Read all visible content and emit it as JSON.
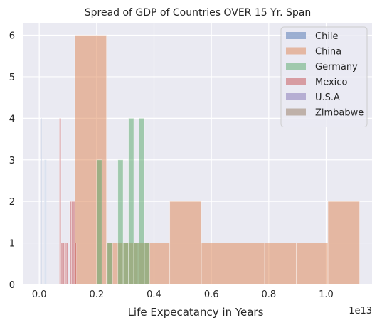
{
  "chart_data": {
    "type": "histogram",
    "title": "Spread of GDP of Countries OVER 15 Yr. Span",
    "xlabel": "Life Expecatancy in Years",
    "ylabel": "",
    "x_offset_label": "1e13",
    "xlim": [
      -0.055,
      1.16
    ],
    "ylim": [
      0,
      6.3
    ],
    "x_ticks": [
      0.0,
      0.2,
      0.4,
      0.6,
      0.8,
      1.0
    ],
    "x_tick_labels": [
      "0.0",
      "0.2",
      "0.4",
      "0.6",
      "0.8",
      "1.0"
    ],
    "y_ticks": [
      0,
      1,
      2,
      3,
      4,
      5,
      6
    ],
    "y_tick_labels": [
      "0",
      "1",
      "2",
      "3",
      "4",
      "5",
      "6"
    ],
    "grid": true,
    "legend_position": "top-right",
    "series": [
      {
        "name": "Chile",
        "color": "#4c72b0",
        "bins": [
          [
            0.007,
            0.0088,
            4
          ],
          [
            0.0088,
            0.0106,
            0
          ],
          [
            0.0106,
            0.0124,
            0
          ],
          [
            0.0124,
            0.0142,
            0
          ],
          [
            0.0142,
            0.016,
            0
          ],
          [
            0.016,
            0.0178,
            0
          ],
          [
            0.0178,
            0.0196,
            3
          ],
          [
            0.0196,
            0.0214,
            3
          ],
          [
            0.0214,
            0.0232,
            3
          ],
          [
            0.0232,
            0.025,
            3
          ]
        ]
      },
      {
        "name": "China",
        "color": "#dd8452",
        "bins": [
          [
            0.124,
            0.2343,
            6
          ],
          [
            0.2343,
            0.3446,
            1
          ],
          [
            0.3446,
            0.4549,
            1
          ],
          [
            0.4549,
            0.5652,
            2
          ],
          [
            0.5652,
            0.6755,
            1
          ],
          [
            0.6755,
            0.7858,
            1
          ],
          [
            0.7858,
            0.8961,
            1
          ],
          [
            0.8961,
            1.0064,
            1
          ],
          [
            1.0064,
            1.1167,
            2
          ]
        ]
      },
      {
        "name": "Germany",
        "color": "#55a868",
        "bins": [
          [
            0.2,
            0.2185,
            3
          ],
          [
            0.2185,
            0.237,
            0
          ],
          [
            0.237,
            0.2555,
            1
          ],
          [
            0.2555,
            0.274,
            0
          ],
          [
            0.274,
            0.2925,
            3
          ],
          [
            0.2925,
            0.311,
            1
          ],
          [
            0.311,
            0.3295,
            4
          ],
          [
            0.3295,
            0.348,
            1
          ],
          [
            0.348,
            0.3665,
            4
          ],
          [
            0.3665,
            0.385,
            1
          ]
        ]
      },
      {
        "name": "Mexico",
        "color": "#c44e52",
        "bins": [
          [
            0.07,
            0.076,
            4
          ],
          [
            0.076,
            0.082,
            1
          ],
          [
            0.082,
            0.088,
            1
          ],
          [
            0.088,
            0.094,
            1
          ],
          [
            0.094,
            0.1,
            1
          ],
          [
            0.1,
            0.106,
            0
          ],
          [
            0.106,
            0.112,
            2
          ],
          [
            0.112,
            0.118,
            2
          ],
          [
            0.118,
            0.124,
            2
          ],
          [
            0.124,
            0.13,
            1
          ]
        ]
      },
      {
        "name": "U.S.A",
        "color": "#8172b3",
        "bins": []
      },
      {
        "name": "Zimbabwe",
        "color": "#937860",
        "bins": []
      }
    ]
  }
}
